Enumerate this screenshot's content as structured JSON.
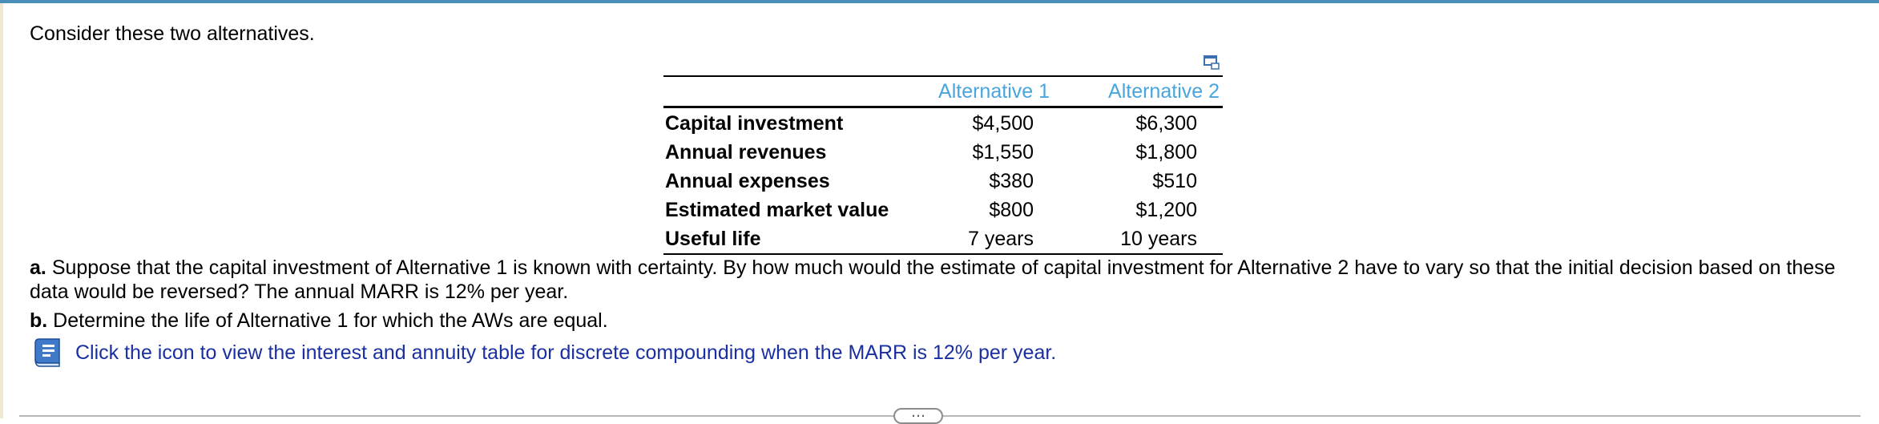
{
  "intro": "Consider these two alternatives.",
  "table": {
    "headers": [
      "Alternative 1",
      "Alternative 2"
    ],
    "header_color": "#4aa5dc",
    "rows": [
      {
        "label": "Capital investment",
        "alt1": "$4,500",
        "alt2": "$6,300"
      },
      {
        "label": "Annual revenues",
        "alt1": "$1,550",
        "alt2": "$1,800"
      },
      {
        "label": "Annual expenses",
        "alt1": "$380",
        "alt2": "$510"
      },
      {
        "label": "Estimated market value",
        "alt1": "$800",
        "alt2": "$1,200"
      },
      {
        "label": "Useful life",
        "alt1": "7 years",
        "alt2": "10 years"
      }
    ]
  },
  "question_a": {
    "marker": "a.",
    "text": "Suppose that the capital investment of Alternative 1 is known with certainty. By how much would the estimate of capital investment for Alternative 2 have to vary so that the initial decision based on these data would be reversed? The annual MARR is 12% per year."
  },
  "question_b": {
    "marker": "b.",
    "text": "Determine the life of Alternative 1 for which the AWs are equal."
  },
  "help_link": {
    "icon": "book-icon",
    "text": "Click the icon to view the interest and annuity table for discrete compounding when the MARR is 12% per year.",
    "color": "#1a2fa0"
  },
  "more_button": {
    "label": "…"
  }
}
